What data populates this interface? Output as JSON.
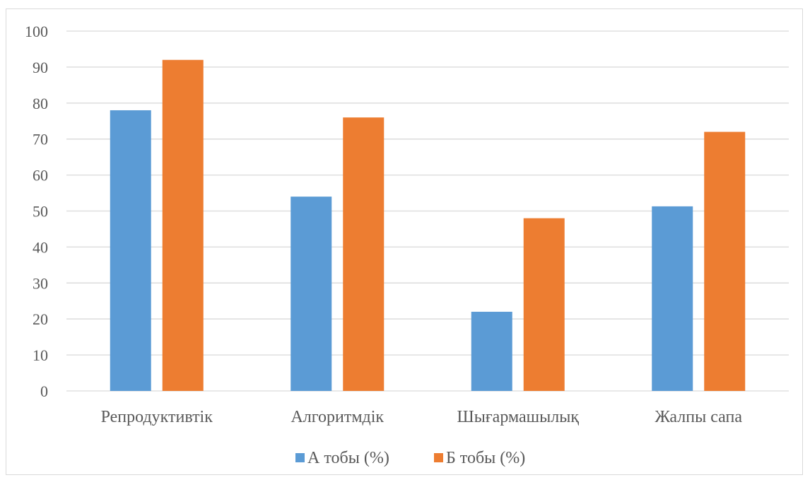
{
  "chart_data": {
    "type": "bar",
    "title": "",
    "xlabel": "",
    "ylabel": "",
    "categories": [
      "Репродуктивтік",
      "Алгоритмдік",
      "Шығармашылық",
      "Жалпы сапа"
    ],
    "series": [
      {
        "name": "А тобы (%)",
        "values": [
          78,
          54,
          22,
          51.3
        ],
        "color": "#5b9bd5"
      },
      {
        "name": "Б тобы (%)",
        "values": [
          92,
          76,
          48,
          72
        ],
        "color": "#ed7d31"
      }
    ],
    "ylim": [
      0,
      100
    ],
    "yticks": [
      "0",
      "10",
      "20",
      "30",
      "40",
      "50",
      "60",
      "70",
      "80",
      "90",
      "100"
    ],
    "grid": true,
    "gridColor": "#d9d9d9",
    "legend_position": "bottom"
  }
}
